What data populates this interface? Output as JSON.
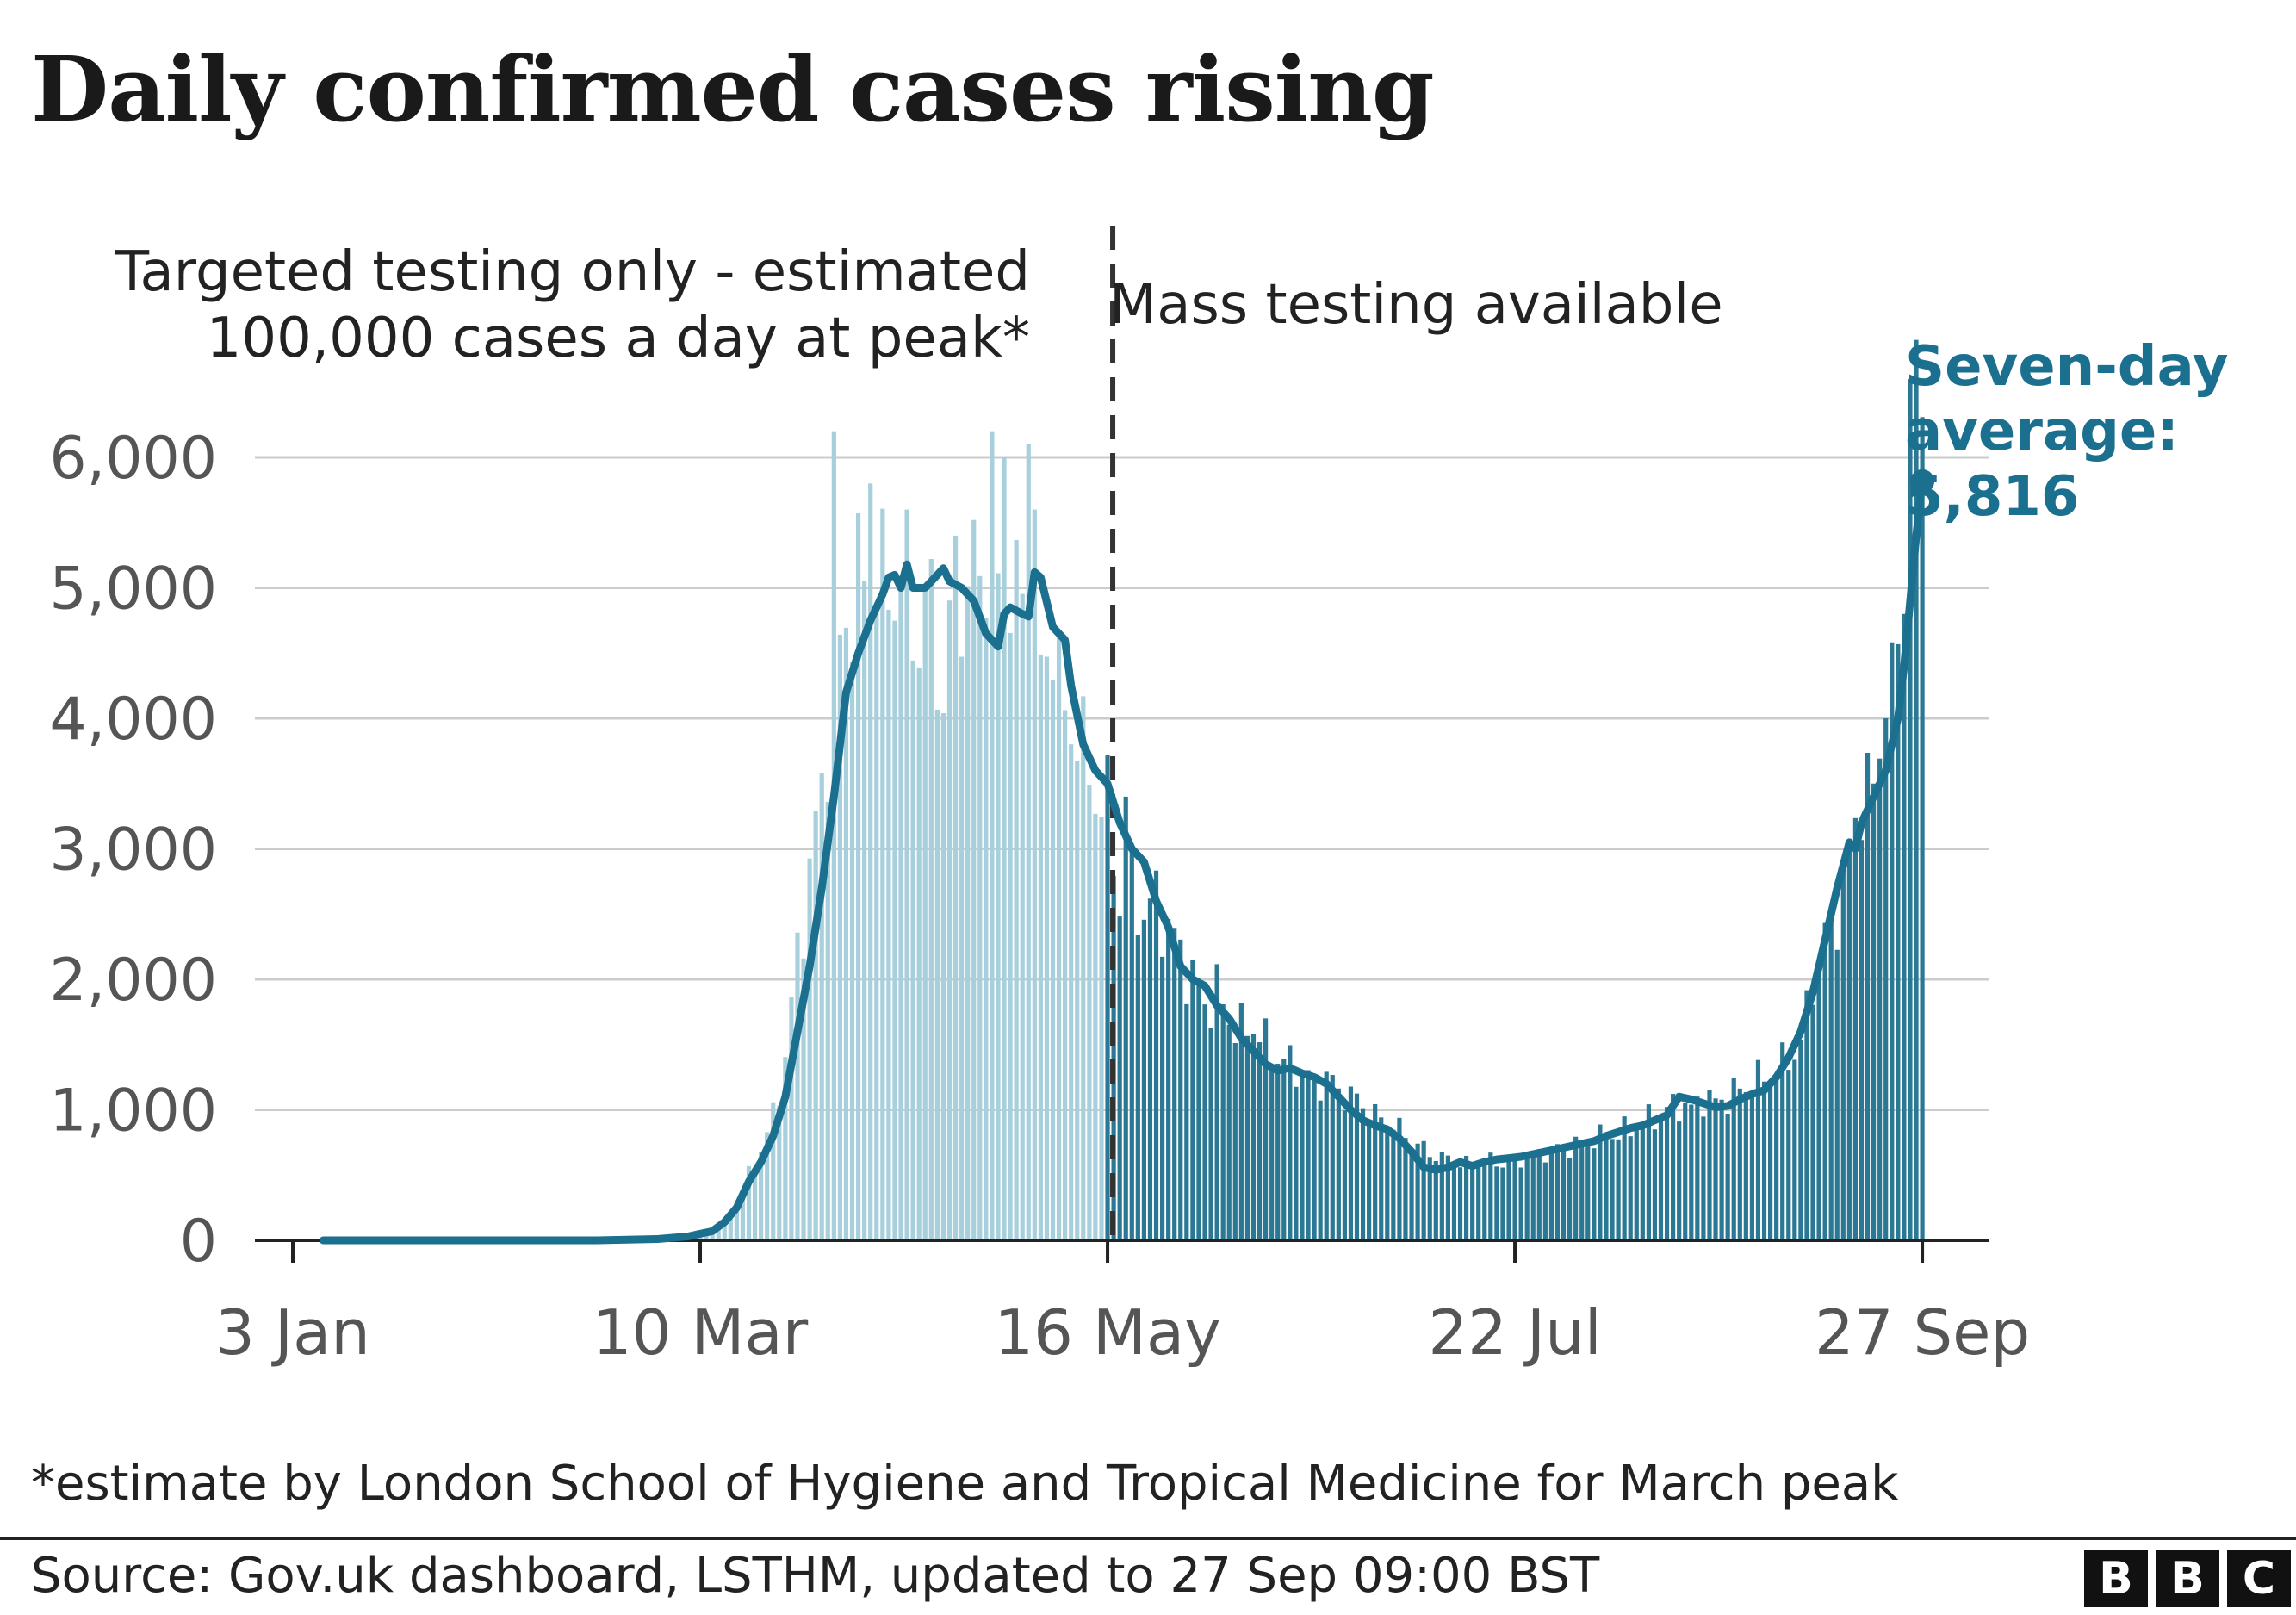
{
  "title": "Daily confirmed cases rising",
  "annotations": {
    "left_period_line1": "Targeted testing only - estimated",
    "left_period_line2": "100,000 cases a day at peak*",
    "right_period": "Mass testing available",
    "average_line1": "Seven-day",
    "average_line2": "average:",
    "average_value": "5,816"
  },
  "footnote": "*estimate by London School of Hygiene and Tropical Medicine for March peak",
  "source": "Source: Gov.uk dashboard, LSTHM, updated to 27 Sep 09:00 BST",
  "logo": {
    "letters": [
      "B",
      "B",
      "C"
    ]
  },
  "colors": {
    "bars_before": "#a7cfdc",
    "bars_after": "#2a7893",
    "average_line": "#1b6f8f",
    "gridline": "#cccccc",
    "axis": "#222222",
    "tick_label": "#555555",
    "annotation_text": "#222222",
    "average_label": "#1b6f8f",
    "divider": "#333333"
  },
  "chart_data": {
    "type": "bar",
    "title": "Daily confirmed cases rising",
    "x_axis": {
      "start": "3 Jan",
      "end": "27 Sep",
      "ticks": [
        {
          "label": "3 Jan",
          "day": 0
        },
        {
          "label": "10 Mar",
          "day": 67
        },
        {
          "label": "16 May",
          "day": 134
        },
        {
          "label": "22 Jul",
          "day": 201
        },
        {
          "label": "27 Sep",
          "day": 268
        }
      ]
    },
    "y_axis": {
      "ylim": [
        0,
        6000
      ],
      "ticks": [
        {
          "label": "0",
          "value": 0
        },
        {
          "label": "1,000",
          "value": 1000
        },
        {
          "label": "2,000",
          "value": 2000
        },
        {
          "label": "3,000",
          "value": 3000
        },
        {
          "label": "4,000",
          "value": 4000
        },
        {
          "label": "5,000",
          "value": 5000
        },
        {
          "label": "6,000",
          "value": 6000
        }
      ]
    },
    "grid": true,
    "testing_change_day": 134,
    "series": [
      {
        "type": "bar",
        "anchors": [
          [
            0,
            0
          ],
          [
            50,
            0
          ],
          [
            60,
            5
          ],
          [
            63,
            12
          ],
          [
            65,
            25
          ],
          [
            67,
            40
          ],
          [
            69,
            80
          ],
          [
            71,
            150
          ],
          [
            73,
            300
          ],
          [
            75,
            500
          ],
          [
            77,
            700
          ],
          [
            79,
            950
          ],
          [
            81,
            1400
          ],
          [
            83,
            2200
          ],
          [
            85,
            2800
          ],
          [
            87,
            3500
          ],
          [
            89,
            4200
          ],
          [
            91,
            4800
          ],
          [
            93,
            5000
          ],
          [
            95,
            5100
          ],
          [
            97,
            5000
          ],
          [
            99,
            5050
          ],
          [
            101,
            5000
          ],
          [
            103,
            4600
          ],
          [
            105,
            4900
          ],
          [
            107,
            4100
          ],
          [
            109,
            5000
          ],
          [
            111,
            4900
          ],
          [
            113,
            5300
          ],
          [
            115,
            5000
          ],
          [
            117,
            4600
          ],
          [
            119,
            5000
          ],
          [
            121,
            4600
          ],
          [
            123,
            4200
          ],
          [
            125,
            4800
          ],
          [
            127,
            3900
          ],
          [
            129,
            4000
          ],
          [
            131,
            3500
          ],
          [
            133,
            3400
          ],
          [
            134,
            3300
          ],
          [
            136,
            2600
          ],
          [
            138,
            2700
          ],
          [
            140,
            2500
          ],
          [
            142,
            2600
          ],
          [
            144,
            2400
          ],
          [
            146,
            2200
          ],
          [
            148,
            2000
          ],
          [
            150,
            1800
          ],
          [
            152,
            1900
          ],
          [
            154,
            1700
          ],
          [
            156,
            1600
          ],
          [
            158,
            1650
          ],
          [
            160,
            1500
          ],
          [
            162,
            1400
          ],
          [
            164,
            1350
          ],
          [
            166,
            1300
          ],
          [
            168,
            1200
          ],
          [
            170,
            1250
          ],
          [
            172,
            1150
          ],
          [
            174,
            1100
          ],
          [
            176,
            1050
          ],
          [
            178,
            950
          ],
          [
            180,
            900
          ],
          [
            182,
            850
          ],
          [
            184,
            750
          ],
          [
            186,
            700
          ],
          [
            188,
            650
          ],
          [
            190,
            620
          ],
          [
            192,
            580
          ],
          [
            194,
            600
          ],
          [
            196,
            620
          ],
          [
            198,
            600
          ],
          [
            200,
            580
          ],
          [
            202,
            620
          ],
          [
            204,
            650
          ],
          [
            206,
            680
          ],
          [
            208,
            700
          ],
          [
            210,
            720
          ],
          [
            212,
            740
          ],
          [
            214,
            780
          ],
          [
            216,
            800
          ],
          [
            218,
            820
          ],
          [
            220,
            850
          ],
          [
            222,
            900
          ],
          [
            224,
            950
          ],
          [
            226,
            1000
          ],
          [
            228,
            1050
          ],
          [
            230,
            1000
          ],
          [
            232,
            1100
          ],
          [
            234,
            1050
          ],
          [
            236,
            1100
          ],
          [
            238,
            1150
          ],
          [
            240,
            1200
          ],
          [
            242,
            1250
          ],
          [
            244,
            1300
          ],
          [
            246,
            1400
          ],
          [
            248,
            1500
          ],
          [
            250,
            2000
          ],
          [
            252,
            2300
          ],
          [
            254,
            2500
          ],
          [
            256,
            3100
          ],
          [
            258,
            3400
          ],
          [
            260,
            3700
          ],
          [
            262,
            4100
          ],
          [
            264,
            4400
          ],
          [
            266,
            5500
          ],
          [
            267,
            5800
          ],
          [
            268,
            6300
          ]
        ],
        "spikes": [
          [
            89,
            6200
          ],
          [
            95,
            5800
          ],
          [
            101,
            5600
          ],
          [
            109,
            5400
          ],
          [
            115,
            6200
          ],
          [
            117,
            6000
          ],
          [
            121,
            6100
          ],
          [
            122,
            5600
          ],
          [
            137,
            3400
          ],
          [
            256,
            3000
          ],
          [
            260,
            3500
          ],
          [
            262,
            4000
          ],
          [
            265,
            4800
          ],
          [
            266,
            6600
          ],
          [
            267,
            6900
          ]
        ]
      },
      {
        "type": "line",
        "points": [
          [
            5,
            0
          ],
          [
            50,
            0
          ],
          [
            60,
            10
          ],
          [
            65,
            30
          ],
          [
            67,
            50
          ],
          [
            69,
            70
          ],
          [
            71,
            140
          ],
          [
            73,
            250
          ],
          [
            75,
            450
          ],
          [
            77,
            600
          ],
          [
            79,
            800
          ],
          [
            81,
            1100
          ],
          [
            83,
            1600
          ],
          [
            85,
            2100
          ],
          [
            87,
            2700
          ],
          [
            89,
            3400
          ],
          [
            91,
            4200
          ],
          [
            93,
            4500
          ],
          [
            95,
            4750
          ],
          [
            97,
            4950
          ],
          [
            98,
            5080
          ],
          [
            99,
            5100
          ],
          [
            100,
            5000
          ],
          [
            101,
            5180
          ],
          [
            102,
            5000
          ],
          [
            104,
            5000
          ],
          [
            106,
            5100
          ],
          [
            107,
            5150
          ],
          [
            108,
            5050
          ],
          [
            110,
            5000
          ],
          [
            112,
            4900
          ],
          [
            114,
            4650
          ],
          [
            116,
            4550
          ],
          [
            117,
            4800
          ],
          [
            118,
            4850
          ],
          [
            120,
            4800
          ],
          [
            121,
            4780
          ],
          [
            122,
            5120
          ],
          [
            123,
            5080
          ],
          [
            125,
            4700
          ],
          [
            127,
            4600
          ],
          [
            128,
            4250
          ],
          [
            130,
            3800
          ],
          [
            132,
            3600
          ],
          [
            134,
            3500
          ],
          [
            136,
            3200
          ],
          [
            138,
            3000
          ],
          [
            140,
            2900
          ],
          [
            142,
            2600
          ],
          [
            144,
            2400
          ],
          [
            146,
            2100
          ],
          [
            148,
            2000
          ],
          [
            150,
            1950
          ],
          [
            152,
            1800
          ],
          [
            154,
            1700
          ],
          [
            156,
            1550
          ],
          [
            158,
            1450
          ],
          [
            160,
            1350
          ],
          [
            162,
            1300
          ],
          [
            164,
            1320
          ],
          [
            166,
            1280
          ],
          [
            168,
            1250
          ],
          [
            170,
            1200
          ],
          [
            172,
            1100
          ],
          [
            174,
            1000
          ],
          [
            176,
            920
          ],
          [
            178,
            880
          ],
          [
            180,
            850
          ],
          [
            182,
            780
          ],
          [
            184,
            680
          ],
          [
            186,
            560
          ],
          [
            188,
            540
          ],
          [
            190,
            560
          ],
          [
            192,
            600
          ],
          [
            194,
            570
          ],
          [
            196,
            600
          ],
          [
            198,
            620
          ],
          [
            200,
            630
          ],
          [
            202,
            640
          ],
          [
            204,
            660
          ],
          [
            206,
            680
          ],
          [
            208,
            700
          ],
          [
            210,
            720
          ],
          [
            212,
            740
          ],
          [
            214,
            760
          ],
          [
            216,
            800
          ],
          [
            218,
            830
          ],
          [
            220,
            860
          ],
          [
            222,
            880
          ],
          [
            224,
            920
          ],
          [
            226,
            960
          ],
          [
            228,
            1100
          ],
          [
            230,
            1080
          ],
          [
            232,
            1050
          ],
          [
            234,
            1020
          ],
          [
            236,
            1030
          ],
          [
            238,
            1080
          ],
          [
            240,
            1120
          ],
          [
            242,
            1150
          ],
          [
            244,
            1250
          ],
          [
            246,
            1400
          ],
          [
            248,
            1600
          ],
          [
            250,
            1900
          ],
          [
            252,
            2300
          ],
          [
            254,
            2700
          ],
          [
            256,
            3050
          ],
          [
            257,
            3000
          ],
          [
            258,
            3200
          ],
          [
            260,
            3400
          ],
          [
            262,
            3600
          ],
          [
            264,
            4000
          ],
          [
            265,
            4400
          ],
          [
            266,
            4900
          ],
          [
            267,
            5400
          ],
          [
            268,
            5816
          ]
        ],
        "last_value": 5816
      }
    ]
  }
}
